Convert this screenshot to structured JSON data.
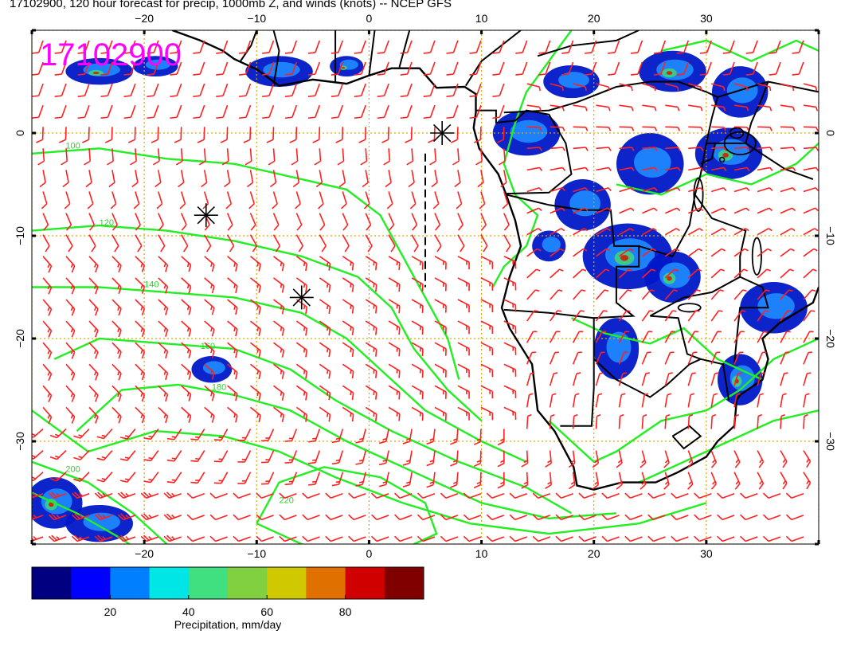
{
  "title": "17102900, 120 hour forecast for precip, 1000mb Z, and winds (knots) -- NCEP GFS",
  "stamp": "17102900",
  "map": {
    "lon_range": [
      -30,
      40
    ],
    "lat_range": [
      -40,
      10
    ],
    "lon_ticks": [
      -20,
      -10,
      0,
      10,
      20,
      30
    ],
    "lat_ticks": [
      0,
      -10,
      -20,
      -30
    ],
    "lon_tick_labels": [
      "−20",
      "−10",
      "0",
      "10",
      "20",
      "30"
    ],
    "lat_tick_labels": [
      "0",
      "−10",
      "−20",
      "−30"
    ],
    "grid_color": "#e0a800",
    "coast_color": "#000000",
    "wind_color": "#ff2020",
    "contour_color": "#22ee22",
    "stamp_color": "#ff00ff"
  },
  "contours": [
    {
      "level": "100",
      "label_lon": -27,
      "label_lat": -1.5
    },
    {
      "level": "120",
      "label_lon": -24,
      "label_lat": -9
    },
    {
      "level": "140",
      "label_lon": -20,
      "label_lat": -15
    },
    {
      "level": "160",
      "label_lon": -15,
      "label_lat": -21
    },
    {
      "level": "180",
      "label_lon": -14,
      "label_lat": -25
    },
    {
      "level": "200",
      "label_lon": -27,
      "label_lat": -33
    },
    {
      "level": "220",
      "label_lon": -8,
      "label_lat": -36
    }
  ],
  "markers": [
    {
      "lon": -14.5,
      "lat": -8
    },
    {
      "lon": -6,
      "lat": -16
    },
    {
      "lon": 6.5,
      "lat": 0
    }
  ],
  "colorbar": {
    "ticks": [
      "20",
      "40",
      "60",
      "80"
    ],
    "tick_values": [
      20,
      40,
      60,
      80
    ],
    "range": [
      0,
      100
    ],
    "label": "Precipitation, mm/day",
    "colors": [
      "#000080",
      "#0000ff",
      "#0080ff",
      "#00e5e5",
      "#40e080",
      "#80d040",
      "#d0c800",
      "#e07000",
      "#d00000",
      "#800000"
    ]
  }
}
